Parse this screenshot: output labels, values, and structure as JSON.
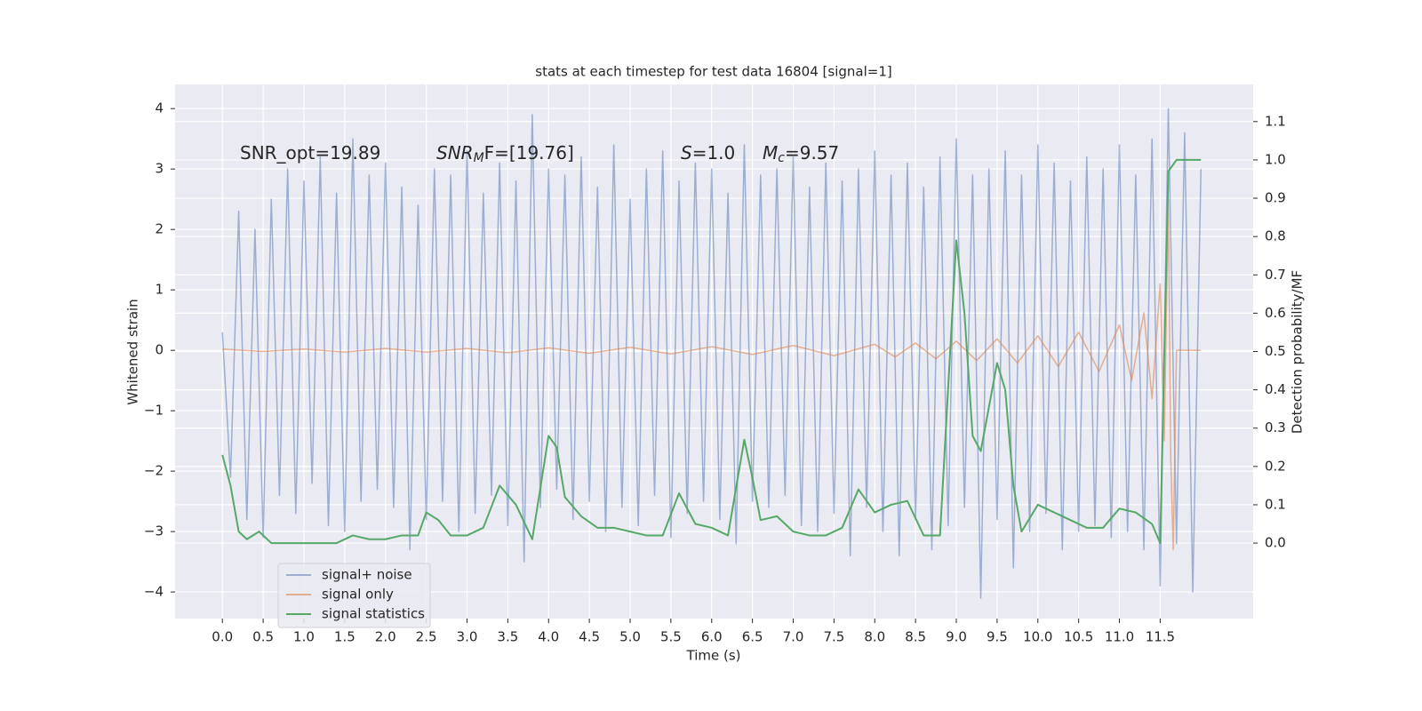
{
  "chart_data": {
    "type": "line",
    "title": "stats at each timestep for test data 16804 [signal=1]",
    "x_label": "Time (s)",
    "y_label": "Whitened strain",
    "y2_label": "Detection probability/MF",
    "background": "#eaeaf2",
    "grid": true,
    "legend": "lower left",
    "xlim": [
      -0.58,
      12.64
    ],
    "ylim": [
      -4.44,
      4.4
    ],
    "y2lim": [
      -0.197,
      1.197
    ],
    "xticks": [
      {
        "value": 0,
        "label": "0.0"
      },
      0.5,
      {
        "value": 1,
        "label": "1.0"
      },
      1.5,
      {
        "value": 2,
        "label": "2.0"
      },
      2.5,
      {
        "value": 3,
        "label": "3.0"
      },
      3.5,
      {
        "value": 4,
        "label": "4.0"
      },
      4.5,
      {
        "value": 5,
        "label": "5.0"
      },
      5.5,
      {
        "value": 6,
        "label": "6.0"
      },
      6.5,
      {
        "value": 7,
        "label": "7.0"
      },
      7.5,
      {
        "value": 8,
        "label": "8.0"
      },
      8.5,
      {
        "value": 9,
        "label": "9.0"
      },
      9.5,
      {
        "value": 10,
        "label": "10.0"
      },
      10.5,
      {
        "value": 11,
        "label": "11.0"
      },
      11.5
    ],
    "yticks": [
      {
        "value": -4,
        "label": "−4"
      },
      {
        "value": -3,
        "label": "−3"
      },
      {
        "value": -2,
        "label": "−2"
      },
      {
        "value": -1,
        "label": "−1"
      },
      0,
      1,
      2,
      3,
      4
    ],
    "y2ticks": [
      {
        "value": 0,
        "label": "0.0"
      },
      0.1,
      0.2,
      0.3,
      0.4,
      0.5,
      0.6,
      0.7,
      0.8,
      0.9,
      {
        "value": 1,
        "label": "1.0"
      },
      1.1
    ],
    "annotations": [
      [
        {
          "text": "SNR_opt=19.89",
          "style": "normal"
        }
      ],
      [
        {
          "text": "SNR",
          "style": "italic"
        },
        {
          "text": "M",
          "style": "italic-sub"
        },
        {
          "text": "F=[19.76]",
          "style": "normal"
        }
      ],
      [
        {
          "text": "S",
          "style": "italic"
        },
        {
          "text": "=1.0",
          "style": "normal"
        }
      ],
      [
        {
          "text": "M",
          "style": "italic"
        },
        {
          "text": "c",
          "style": "italic-sub"
        },
        {
          "text": "=9.57",
          "style": "normal"
        }
      ]
    ],
    "series": [
      {
        "name": "signal+ noise",
        "color": "#4c72b0",
        "opacity": 0.5,
        "axis": "y",
        "x": [
          0.0,
          0.1,
          0.2,
          0.3,
          0.4,
          0.5,
          0.6,
          0.7,
          0.8,
          0.9,
          1.0,
          1.1,
          1.2,
          1.3,
          1.4,
          1.5,
          1.6,
          1.7,
          1.8,
          1.9,
          2.0,
          2.1,
          2.2,
          2.3,
          2.4,
          2.5,
          2.6,
          2.7,
          2.8,
          2.9,
          3.0,
          3.1,
          3.2,
          3.3,
          3.4,
          3.5,
          3.6,
          3.7,
          3.8,
          3.9,
          4.0,
          4.1,
          4.2,
          4.3,
          4.4,
          4.5,
          4.6,
          4.7,
          4.8,
          4.9,
          5.0,
          5.1,
          5.2,
          5.3,
          5.4,
          5.5,
          5.6,
          5.7,
          5.8,
          5.9,
          6.0,
          6.1,
          6.2,
          6.3,
          6.4,
          6.5,
          6.6,
          6.7,
          6.8,
          6.9,
          7.0,
          7.1,
          7.2,
          7.3,
          7.4,
          7.5,
          7.6,
          7.7,
          7.8,
          7.9,
          8.0,
          8.1,
          8.2,
          8.3,
          8.4,
          8.5,
          8.6,
          8.7,
          8.8,
          8.9,
          9.0,
          9.1,
          9.2,
          9.3,
          9.4,
          9.5,
          9.6,
          9.7,
          9.8,
          9.9,
          10.0,
          10.1,
          10.2,
          10.3,
          10.4,
          10.5,
          10.6,
          10.7,
          10.8,
          10.9,
          11.0,
          11.1,
          11.2,
          11.3,
          11.4,
          11.5,
          11.6,
          11.7,
          11.8,
          11.9,
          12.0
        ],
        "values": [
          0.3,
          -2.1,
          2.3,
          -2.8,
          2.0,
          -3.1,
          2.5,
          -2.4,
          3.0,
          -2.7,
          2.8,
          -2.2,
          3.2,
          -2.9,
          2.6,
          -3.0,
          3.5,
          -2.5,
          2.9,
          -2.3,
          3.1,
          -2.6,
          2.7,
          -3.3,
          2.4,
          -2.8,
          3.0,
          -2.5,
          2.9,
          -3.0,
          3.3,
          -2.7,
          2.6,
          -2.4,
          3.1,
          -2.9,
          2.8,
          -3.5,
          3.9,
          -2.6,
          3.0,
          -2.3,
          2.9,
          -2.8,
          3.2,
          -2.5,
          2.7,
          -3.0,
          3.4,
          -2.6,
          2.5,
          -2.9,
          3.0,
          -2.4,
          3.3,
          -3.1,
          2.8,
          -2.7,
          3.1,
          -2.5,
          3.0,
          -2.8,
          2.6,
          -3.2,
          3.4,
          -2.5,
          2.9,
          -2.6,
          3.0,
          -2.4,
          3.2,
          -2.9,
          2.7,
          -3.0,
          3.1,
          -2.7,
          2.8,
          -3.4,
          3.0,
          -2.6,
          3.3,
          -3.0,
          2.9,
          -3.4,
          3.1,
          -2.8,
          2.7,
          -3.3,
          3.2,
          -2.9,
          3.5,
          -2.6,
          2.9,
          -4.1,
          3.0,
          -2.8,
          3.3,
          -3.6,
          2.9,
          -3.0,
          3.4,
          -2.7,
          3.1,
          -3.3,
          2.8,
          -3.0,
          3.2,
          -2.9,
          3.0,
          -3.1,
          3.4,
          -3.0,
          2.9,
          -3.3,
          3.5,
          -3.9,
          4.0,
          -3.2,
          3.6,
          -4.0,
          3.0
        ]
      },
      {
        "name": "signal only",
        "color": "#dd8452",
        "opacity": 0.6,
        "axis": "y",
        "x": [
          0.0,
          0.5,
          1.0,
          1.5,
          2.0,
          2.5,
          3.0,
          3.5,
          4.0,
          4.5,
          5.0,
          5.5,
          6.0,
          6.5,
          7.0,
          7.5,
          8.0,
          8.25,
          8.5,
          8.75,
          9.0,
          9.25,
          9.5,
          9.75,
          10.0,
          10.25,
          10.5,
          10.75,
          11.0,
          11.15,
          11.3,
          11.4,
          11.5,
          11.55,
          11.6,
          11.63,
          11.66,
          11.7,
          12.0
        ],
        "values": [
          0.02,
          -0.02,
          0.02,
          -0.03,
          0.03,
          -0.03,
          0.03,
          -0.04,
          0.04,
          -0.05,
          0.05,
          -0.06,
          0.06,
          -0.07,
          0.08,
          -0.09,
          0.1,
          -0.11,
          0.12,
          -0.14,
          0.15,
          -0.17,
          0.19,
          -0.21,
          0.24,
          -0.27,
          0.3,
          -0.35,
          0.42,
          -0.5,
          0.62,
          -0.8,
          1.1,
          -1.5,
          2.5,
          -1.8,
          -3.3,
          0.0,
          0.0
        ]
      },
      {
        "name": "signal statistics",
        "color": "#55a868",
        "opacity": 1,
        "axis": "y2",
        "x": [
          0.0,
          0.1,
          0.2,
          0.3,
          0.45,
          0.6,
          0.8,
          1.0,
          1.2,
          1.4,
          1.6,
          1.8,
          2.0,
          2.2,
          2.4,
          2.5,
          2.65,
          2.8,
          3.0,
          3.2,
          3.4,
          3.6,
          3.8,
          4.0,
          4.1,
          4.2,
          4.4,
          4.6,
          4.8,
          5.0,
          5.2,
          5.4,
          5.6,
          5.8,
          6.0,
          6.2,
          6.4,
          6.5,
          6.6,
          6.8,
          7.0,
          7.2,
          7.4,
          7.6,
          7.8,
          8.0,
          8.2,
          8.4,
          8.6,
          8.8,
          9.0,
          9.1,
          9.2,
          9.3,
          9.5,
          9.6,
          9.7,
          9.8,
          10.0,
          10.2,
          10.4,
          10.6,
          10.8,
          11.0,
          11.2,
          11.4,
          11.5,
          11.6,
          11.7,
          12.0
        ],
        "values": [
          0.23,
          0.15,
          0.03,
          0.01,
          0.03,
          0.0,
          0.0,
          0.0,
          0.0,
          0.0,
          0.02,
          0.01,
          0.01,
          0.02,
          0.02,
          0.08,
          0.06,
          0.02,
          0.02,
          0.04,
          0.15,
          0.1,
          0.01,
          0.28,
          0.25,
          0.12,
          0.07,
          0.04,
          0.04,
          0.03,
          0.02,
          0.02,
          0.13,
          0.05,
          0.04,
          0.02,
          0.27,
          0.17,
          0.06,
          0.07,
          0.03,
          0.02,
          0.02,
          0.04,
          0.14,
          0.08,
          0.1,
          0.11,
          0.02,
          0.02,
          0.79,
          0.6,
          0.28,
          0.24,
          0.47,
          0.4,
          0.15,
          0.03,
          0.1,
          0.08,
          0.06,
          0.04,
          0.04,
          0.09,
          0.08,
          0.05,
          0.0,
          0.97,
          1.0,
          1.0
        ]
      }
    ]
  }
}
